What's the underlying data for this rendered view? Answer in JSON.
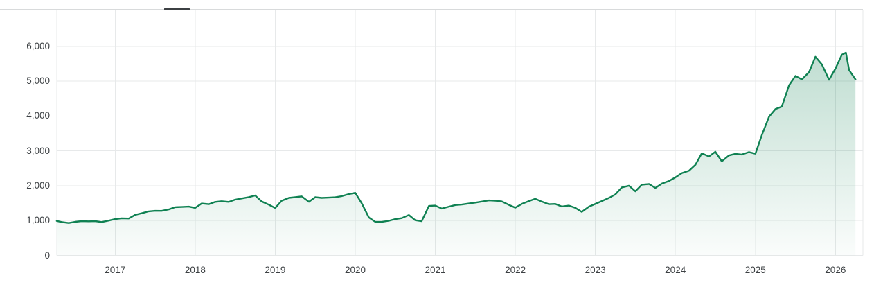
{
  "app": {
    "tabs_divider_color": "#d8dadb",
    "active_tab_indicator_color": "#3c4043"
  },
  "chart_data": {
    "type": "area",
    "title": "",
    "xlabel": "",
    "ylabel": "",
    "legend": "none",
    "grid": true,
    "line_color": "#0f8152",
    "fill_color_top": "rgba(16,129,82,0.28)",
    "fill_color_bottom": "rgba(16,129,82,0.02)",
    "grid_color": "#e7e9ea",
    "tick_label_color": "#3c4043",
    "xlim": [
      2016.2705,
      2026.345
    ],
    "ylim": [
      0,
      7050
    ],
    "y_ticks": [
      {
        "label": "0",
        "value": 0
      },
      {
        "label": "1,000",
        "value": 1000
      },
      {
        "label": "2,000",
        "value": 2000
      },
      {
        "label": "3,000",
        "value": 3000
      },
      {
        "label": "4,000",
        "value": 4000
      },
      {
        "label": "5,000",
        "value": 5000
      },
      {
        "label": "6,000",
        "value": 6000
      }
    ],
    "x_ticks": [
      {
        "label": "2017",
        "year": 2017
      },
      {
        "label": "2018",
        "year": 2018
      },
      {
        "label": "2019",
        "year": 2019
      },
      {
        "label": "2020",
        "year": 2020
      },
      {
        "label": "2021",
        "year": 2021
      },
      {
        "label": "2022",
        "year": 2022
      },
      {
        "label": "2023",
        "year": 2023
      },
      {
        "label": "2024",
        "year": 2024
      },
      {
        "label": "2025",
        "year": 2025
      },
      {
        "label": "2026",
        "year": 2026
      }
    ],
    "points": [
      [
        2016.27,
        990
      ],
      [
        2016.33,
        958
      ],
      [
        2016.42,
        930
      ],
      [
        2016.5,
        965
      ],
      [
        2016.58,
        985
      ],
      [
        2016.67,
        978
      ],
      [
        2016.75,
        985
      ],
      [
        2016.83,
        958
      ],
      [
        2016.92,
        1000
      ],
      [
        2017.0,
        1045
      ],
      [
        2017.08,
        1065
      ],
      [
        2017.17,
        1060
      ],
      [
        2017.25,
        1165
      ],
      [
        2017.33,
        1210
      ],
      [
        2017.42,
        1265
      ],
      [
        2017.5,
        1280
      ],
      [
        2017.58,
        1278
      ],
      [
        2017.67,
        1320
      ],
      [
        2017.75,
        1385
      ],
      [
        2017.83,
        1390
      ],
      [
        2017.92,
        1400
      ],
      [
        2018.0,
        1365
      ],
      [
        2018.08,
        1490
      ],
      [
        2018.17,
        1470
      ],
      [
        2018.25,
        1535
      ],
      [
        2018.33,
        1555
      ],
      [
        2018.42,
        1535
      ],
      [
        2018.5,
        1600
      ],
      [
        2018.58,
        1635
      ],
      [
        2018.67,
        1672
      ],
      [
        2018.75,
        1720
      ],
      [
        2018.83,
        1550
      ],
      [
        2018.92,
        1455
      ],
      [
        2019.0,
        1360
      ],
      [
        2019.08,
        1570
      ],
      [
        2019.17,
        1650
      ],
      [
        2019.25,
        1670
      ],
      [
        2019.33,
        1695
      ],
      [
        2019.42,
        1540
      ],
      [
        2019.5,
        1670
      ],
      [
        2019.58,
        1650
      ],
      [
        2019.67,
        1658
      ],
      [
        2019.75,
        1668
      ],
      [
        2019.83,
        1700
      ],
      [
        2019.92,
        1760
      ],
      [
        2020.0,
        1795
      ],
      [
        2020.08,
        1500
      ],
      [
        2020.17,
        1090
      ],
      [
        2020.25,
        965
      ],
      [
        2020.33,
        962
      ],
      [
        2020.42,
        995
      ],
      [
        2020.5,
        1045
      ],
      [
        2020.58,
        1070
      ],
      [
        2020.67,
        1160
      ],
      [
        2020.75,
        1010
      ],
      [
        2020.83,
        985
      ],
      [
        2020.92,
        1420
      ],
      [
        2021.0,
        1430
      ],
      [
        2021.08,
        1345
      ],
      [
        2021.17,
        1400
      ],
      [
        2021.25,
        1445
      ],
      [
        2021.33,
        1460
      ],
      [
        2021.42,
        1490
      ],
      [
        2021.5,
        1515
      ],
      [
        2021.58,
        1545
      ],
      [
        2021.67,
        1580
      ],
      [
        2021.75,
        1570
      ],
      [
        2021.83,
        1550
      ],
      [
        2021.92,
        1450
      ],
      [
        2022.0,
        1370
      ],
      [
        2022.08,
        1475
      ],
      [
        2022.17,
        1560
      ],
      [
        2022.25,
        1625
      ],
      [
        2022.33,
        1545
      ],
      [
        2022.42,
        1470
      ],
      [
        2022.5,
        1478
      ],
      [
        2022.58,
        1405
      ],
      [
        2022.67,
        1430
      ],
      [
        2022.75,
        1365
      ],
      [
        2022.83,
        1250
      ],
      [
        2022.92,
        1400
      ],
      [
        2023.0,
        1480
      ],
      [
        2023.08,
        1560
      ],
      [
        2023.17,
        1650
      ],
      [
        2023.25,
        1750
      ],
      [
        2023.33,
        1950
      ],
      [
        2023.42,
        2000
      ],
      [
        2023.5,
        1840
      ],
      [
        2023.58,
        2030
      ],
      [
        2023.67,
        2050
      ],
      [
        2023.75,
        1938
      ],
      [
        2023.83,
        2060
      ],
      [
        2023.92,
        2135
      ],
      [
        2024.0,
        2240
      ],
      [
        2024.08,
        2360
      ],
      [
        2024.17,
        2430
      ],
      [
        2024.25,
        2600
      ],
      [
        2024.33,
        2930
      ],
      [
        2024.42,
        2840
      ],
      [
        2024.5,
        2975
      ],
      [
        2024.58,
        2700
      ],
      [
        2024.67,
        2870
      ],
      [
        2024.75,
        2915
      ],
      [
        2024.83,
        2895
      ],
      [
        2024.92,
        2965
      ],
      [
        2025.0,
        2920
      ],
      [
        2025.08,
        3450
      ],
      [
        2025.17,
        3980
      ],
      [
        2025.25,
        4200
      ],
      [
        2025.33,
        4270
      ],
      [
        2025.42,
        4880
      ],
      [
        2025.5,
        5150
      ],
      [
        2025.58,
        5050
      ],
      [
        2025.67,
        5260
      ],
      [
        2025.75,
        5700
      ],
      [
        2025.83,
        5480
      ],
      [
        2025.92,
        5040
      ],
      [
        2026.0,
        5360
      ],
      [
        2026.08,
        5760
      ],
      [
        2026.13,
        5820
      ],
      [
        2026.17,
        5320
      ],
      [
        2026.25,
        5050
      ]
    ]
  }
}
